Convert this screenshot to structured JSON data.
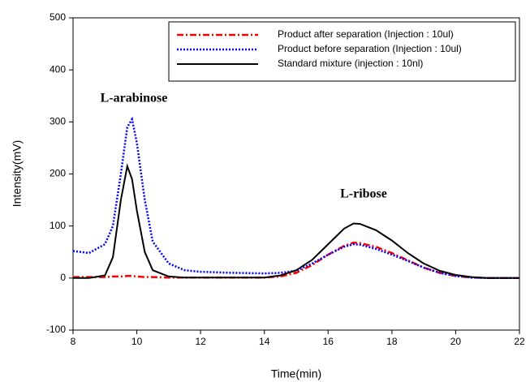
{
  "chart_data": {
    "type": "line",
    "xlabel": "Time(min)",
    "ylabel": "Intensity(mV)",
    "x": [
      8,
      8.5,
      9,
      9.25,
      9.5,
      9.7,
      9.85,
      10,
      10.25,
      10.5,
      11,
      11.5,
      12,
      13,
      14,
      14.5,
      15,
      15.5,
      16,
      16.5,
      16.8,
      17,
      17.5,
      18,
      18.5,
      19,
      19.5,
      20,
      20.5,
      21,
      22
    ],
    "series": [
      {
        "name": "Product after separation  (Injection : 10ul)",
        "color": "#ff0000",
        "style": "dashdot",
        "values": [
          2,
          2,
          2,
          3,
          3,
          4,
          4,
          3,
          2,
          2,
          1,
          1,
          1,
          1,
          1,
          3,
          10,
          25,
          45,
          62,
          68,
          67,
          60,
          48,
          34,
          20,
          10,
          4,
          1,
          0,
          0
        ]
      },
      {
        "name": "Product before separation (Injection : 10ul)",
        "color": "#0000ff",
        "style": "dotted",
        "values": [
          52,
          48,
          65,
          100,
          200,
          290,
          305,
          260,
          150,
          70,
          28,
          15,
          12,
          10,
          9,
          10,
          14,
          28,
          45,
          60,
          65,
          64,
          56,
          45,
          33,
          20,
          10,
          4,
          1,
          0,
          0
        ]
      },
      {
        "name": "Standard mixture (injection : 10nl)",
        "color": "#000000",
        "style": "solid",
        "values": [
          0,
          0,
          5,
          40,
          150,
          215,
          190,
          130,
          50,
          15,
          3,
          1,
          1,
          1,
          1,
          5,
          15,
          35,
          65,
          95,
          105,
          104,
          92,
          72,
          48,
          28,
          14,
          6,
          2,
          0,
          0
        ]
      }
    ],
    "annotations": [
      "L-arabinose",
      "L-ribose"
    ],
    "xlim": [
      8,
      22
    ],
    "xticks": [
      8,
      10,
      12,
      14,
      16,
      18,
      20,
      22
    ],
    "ylim": [
      -100,
      500
    ],
    "yticks": [
      -100,
      0,
      100,
      200,
      300,
      400,
      500
    ],
    "legend": "upper right"
  }
}
